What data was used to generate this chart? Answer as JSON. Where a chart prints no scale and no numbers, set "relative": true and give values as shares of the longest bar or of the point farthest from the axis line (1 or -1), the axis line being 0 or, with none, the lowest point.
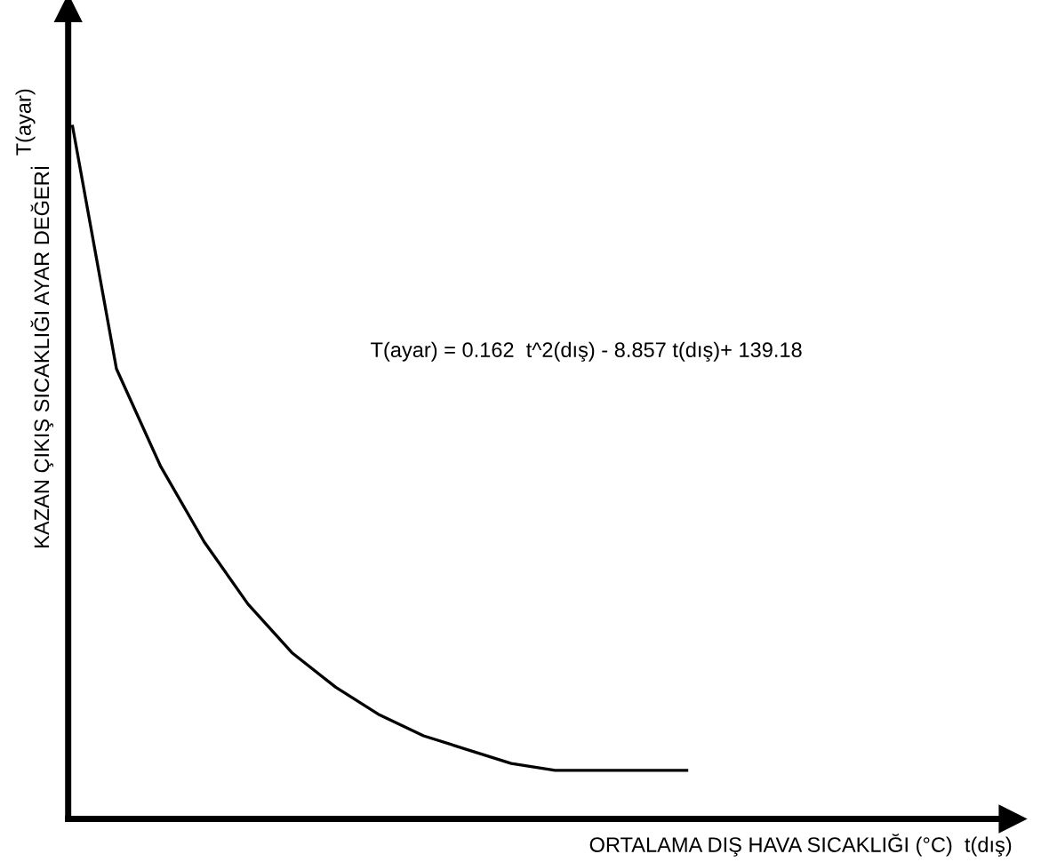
{
  "chart_data": {
    "type": "line",
    "relative": true,
    "xlabel": "ORTALAMA DIŞ HAVA SICAKLIĞI (°C)  t(dış)",
    "ylabel": "KAZAN ÇIKIŞ SICAKLIĞI AYAR DEĞERİ",
    "categories": [
      null,
      null,
      null,
      null,
      null,
      null,
      null,
      null,
      null,
      null,
      null,
      null,
      null,
      null,
      null
    ],
    "series": [
      {
        "color": "#000000",
        "values": [
          1,
          0.65,
          0.51,
          0.4,
          0.31,
          0.24,
          0.19,
          0.15,
          0.12,
          0.1,
          0.08,
          0.07,
          0.07,
          0.07,
          0.07
        ]
      }
    ],
    "annotations": [
      "T(ayar)",
      "T(ayar) = 0.162  t^2(dış) - 8.857 t(dış)+ 139.18"
    ],
    "legend": false,
    "marker": "none",
    "line_style": "solid"
  }
}
